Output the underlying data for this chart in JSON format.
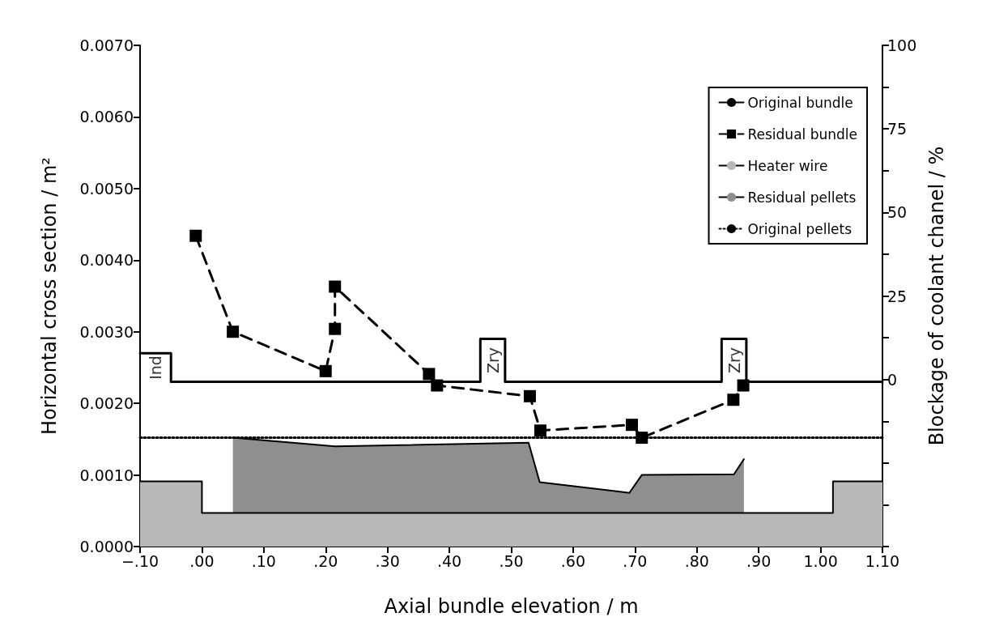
{
  "chart_data": {
    "type": "line",
    "xlabel": "Axial bundle elevation / m",
    "ylabel": "Horizontal cross section / m²",
    "y2label": "Blockage of coolant chanel / %",
    "xlim": [
      -0.1,
      1.1
    ],
    "xticks": [
      {
        "value": -0.1,
        "label": "−.10"
      },
      {
        "value": 0,
        "label": ".00"
      },
      {
        "value": 0.1,
        "label": ".10"
      },
      {
        "value": 0.2,
        "label": ".20"
      },
      {
        "value": 0.3,
        "label": ".30"
      },
      {
        "value": 0.4,
        "label": ".40"
      },
      {
        "value": 0.5,
        "label": ".50"
      },
      {
        "value": 0.6,
        "label": ".60"
      },
      {
        "value": 0.7,
        "label": ".70"
      },
      {
        "value": 0.8,
        "label": ".80"
      },
      {
        "value": 0.9,
        "label": ".90"
      },
      {
        "value": 1.0,
        "label": "1.00"
      },
      {
        "value": 1.1,
        "label": "1.10"
      }
    ],
    "ylim": [
      0,
      0.007
    ],
    "yticks": [
      {
        "value": 0,
        "label": "0.0000"
      },
      {
        "value": 0.001,
        "label": "0.0010"
      },
      {
        "value": 0.002,
        "label": "0.0020"
      },
      {
        "value": 0.003,
        "label": "0.0030"
      },
      {
        "value": 0.004,
        "label": "0.0040"
      },
      {
        "value": 0.005,
        "label": "0.0050"
      },
      {
        "value": 0.006,
        "label": "0.0060"
      },
      {
        "value": 0.007,
        "label": "0.0070"
      }
    ],
    "y2lim": [
      -50,
      100
    ],
    "y2ticks": [
      {
        "value": -50,
        "label": null
      },
      {
        "value": -37.5,
        "label": null
      },
      {
        "value": -25,
        "label": null
      },
      {
        "value": -12.5,
        "label": null
      },
      0,
      {
        "value": 12.5,
        "label": null
      },
      25,
      {
        "value": 37.5,
        "label": null
      },
      50,
      {
        "value": 62.5,
        "label": null
      },
      75,
      {
        "value": 87.5,
        "label": null
      },
      100
    ],
    "grid": false,
    "legend": "top right",
    "series": [
      {
        "name": "Original bundle",
        "color": "#000000",
        "line_style": "solid",
        "marker": "none",
        "x": [
          -0.1,
          -0.05,
          -0.05,
          0.45,
          0.45,
          0.49,
          0.49,
          0.84,
          0.84,
          0.88,
          0.88,
          1.1
        ],
        "values": [
          0.0027,
          0.0027,
          0.0023,
          0.0023,
          0.0029,
          0.0029,
          0.0023,
          0.0023,
          0.0029,
          0.0029,
          0.0023,
          0.0023
        ]
      },
      {
        "name": "Residual bundle",
        "color": "#000000",
        "line_style": "dashed",
        "marker": "square",
        "x": [
          -0.01,
          0.05,
          0.2,
          0.215,
          0.215,
          0.367,
          0.38,
          0.53,
          0.547,
          0.695,
          0.711,
          0.859,
          0.875
        ],
        "values": [
          0.00434,
          0.003,
          0.00245,
          0.00304,
          0.00363,
          0.00241,
          0.00225,
          0.0021,
          0.00162,
          0.0017,
          0.00152,
          0.00205,
          0.00225
        ]
      },
      {
        "name": "Heater wire",
        "type": "area",
        "color": "#b8b8b8",
        "line_style": "solid",
        "marker": "none",
        "x": [
          -0.1,
          0,
          0,
          1.02,
          1.02,
          1.1
        ],
        "values": [
          0.00091,
          0.00091,
          0.00047,
          0.00047,
          0.00091,
          0.00091
        ]
      },
      {
        "name": "Residual pellets",
        "type": "area",
        "color": "#8f8f8f",
        "line_style": "solid",
        "marker": "none",
        "x": [
          0.05,
          0.215,
          0.528,
          0.546,
          0.691,
          0.711,
          0.86,
          0.876
        ],
        "values": [
          0.00152,
          0.0014,
          0.00145,
          0.0009,
          0.00075,
          0.001,
          0.00101,
          0.00122
        ]
      },
      {
        "name": "Original pellets",
        "color": "#000000",
        "line_style": "dotted",
        "marker": "none",
        "x": [
          -0.1,
          1.1
        ],
        "values": [
          0.00152,
          0.00152
        ]
      }
    ],
    "annotations": [
      {
        "text": "Ind",
        "x": -0.1,
        "y": 0.0027
      },
      {
        "text": "Zry",
        "x": 0.45,
        "y": 0.0029
      },
      {
        "text": "Zry",
        "x": 0.84,
        "y": 0.0029
      }
    ]
  }
}
